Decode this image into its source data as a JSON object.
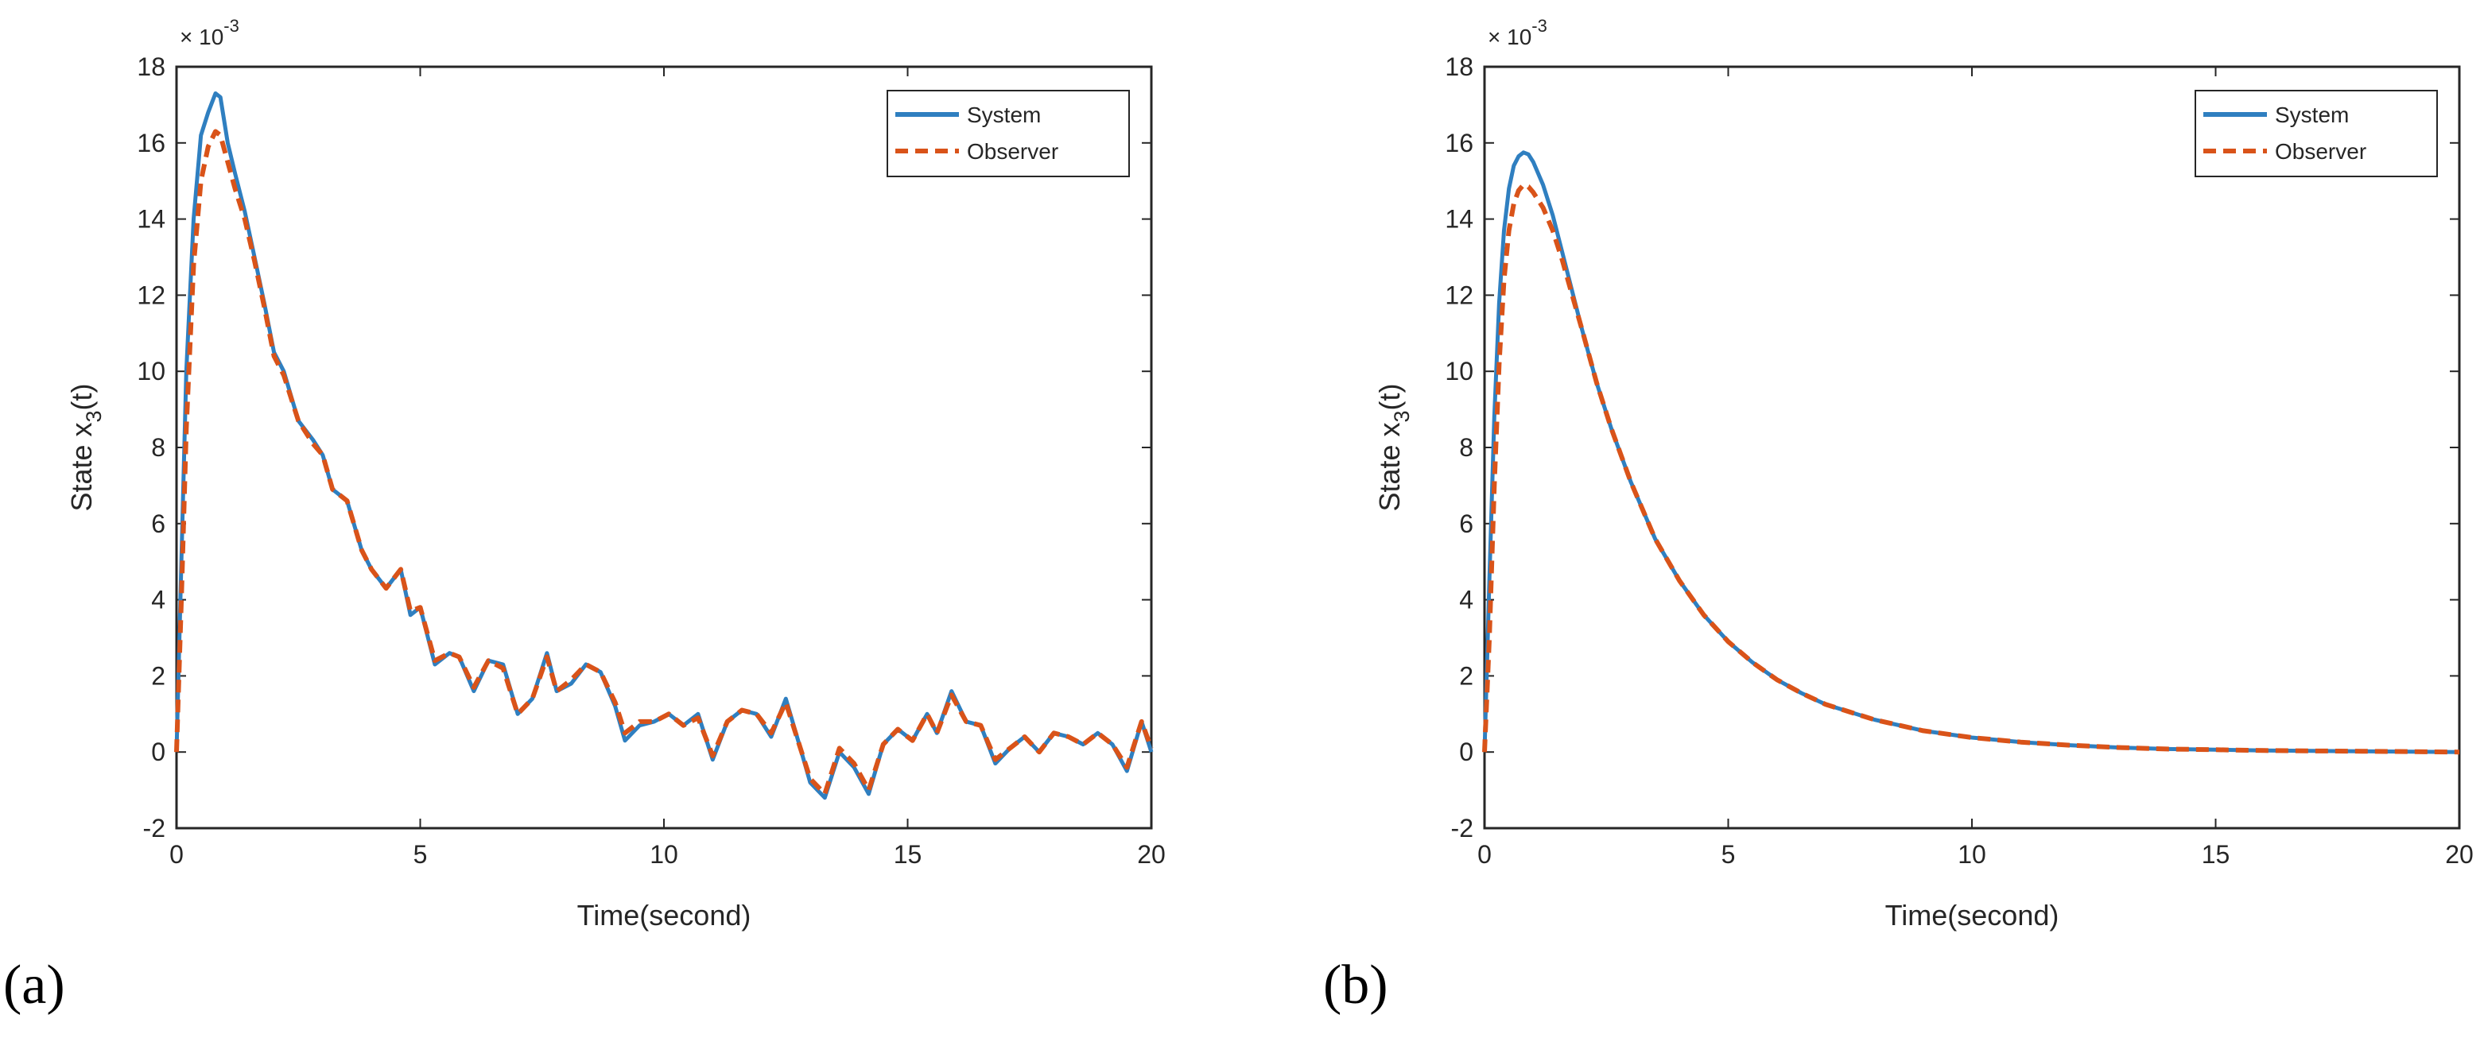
{
  "panels": [
    {
      "label": "(a)"
    },
    {
      "label": "(b)"
    }
  ],
  "colors": {
    "system": "#2f7fc0",
    "observer": "#d95319",
    "axis": "#262626",
    "legend_border": "#262626"
  },
  "chart_data": [
    {
      "type": "line",
      "panel": "(a)",
      "xlabel": "Time(second)",
      "ylabel_main": "State x",
      "ylabel_sub": "3",
      "ylabel_tail": "(t)",
      "exponent_base": "× 10",
      "exponent_power": "-3",
      "xlim": [
        0,
        20
      ],
      "ylim": [
        -2,
        18
      ],
      "xticks": [
        0,
        5,
        10,
        15,
        20
      ],
      "yticks": [
        -2,
        0,
        2,
        4,
        6,
        8,
        10,
        12,
        14,
        16,
        18
      ],
      "legend": [
        "System",
        "Observer"
      ],
      "legend_position": "top-right",
      "grid": false,
      "series": [
        {
          "name": "System",
          "style": "solid",
          "x": [
            0,
            0.1,
            0.2,
            0.35,
            0.5,
            0.65,
            0.8,
            0.9,
            1.05,
            1.2,
            1.4,
            1.6,
            1.8,
            2.0,
            2.2,
            2.5,
            2.8,
            3.0,
            3.2,
            3.5,
            3.8,
            4.0,
            4.3,
            4.6,
            4.8,
            5.0,
            5.3,
            5.6,
            5.8,
            6.1,
            6.4,
            6.7,
            7.0,
            7.3,
            7.6,
            7.8,
            8.1,
            8.4,
            8.7,
            9.0,
            9.2,
            9.5,
            9.8,
            10.1,
            10.4,
            10.7,
            11.0,
            11.3,
            11.6,
            11.9,
            12.2,
            12.5,
            12.8,
            13.0,
            13.3,
            13.6,
            13.9,
            14.2,
            14.5,
            14.8,
            15.1,
            15.4,
            15.6,
            15.9,
            16.2,
            16.5,
            16.8,
            17.1,
            17.4,
            17.7,
            18.0,
            18.3,
            18.6,
            18.9,
            19.2,
            19.5,
            19.8,
            20.0
          ],
          "y": [
            0.0,
            5.0,
            10.0,
            14.0,
            16.2,
            16.8,
            17.3,
            17.2,
            16.0,
            15.2,
            14.2,
            13.0,
            11.8,
            10.5,
            10.0,
            8.7,
            8.2,
            7.8,
            6.9,
            6.6,
            5.3,
            4.8,
            4.3,
            4.8,
            3.6,
            3.8,
            2.3,
            2.6,
            2.5,
            1.6,
            2.4,
            2.3,
            1.0,
            1.4,
            2.6,
            1.6,
            1.8,
            2.3,
            2.1,
            1.2,
            0.3,
            0.7,
            0.8,
            1.0,
            0.7,
            1.0,
            -0.2,
            0.8,
            1.1,
            1.0,
            0.4,
            1.4,
            0.1,
            -0.8,
            -1.2,
            0.0,
            -0.4,
            -1.1,
            0.2,
            0.6,
            0.3,
            1.0,
            0.5,
            1.6,
            0.8,
            0.7,
            -0.3,
            0.1,
            0.4,
            0.0,
            0.5,
            0.4,
            0.2,
            0.5,
            0.2,
            -0.5,
            0.8,
            0.0
          ]
        },
        {
          "name": "Observer",
          "style": "dashed",
          "x": [
            0,
            0.1,
            0.2,
            0.35,
            0.5,
            0.65,
            0.8,
            0.9,
            1.05,
            1.2,
            1.4,
            1.6,
            1.8,
            2.0,
            2.2,
            2.5,
            2.8,
            3.0,
            3.2,
            3.5,
            3.8,
            4.0,
            4.3,
            4.6,
            4.8,
            5.0,
            5.3,
            5.6,
            5.8,
            6.1,
            6.4,
            6.7,
            7.0,
            7.3,
            7.6,
            7.8,
            8.1,
            8.4,
            8.7,
            9.0,
            9.2,
            9.5,
            9.8,
            10.1,
            10.4,
            10.7,
            11.0,
            11.3,
            11.6,
            11.9,
            12.2,
            12.5,
            12.8,
            13.0,
            13.3,
            13.6,
            13.9,
            14.2,
            14.5,
            14.8,
            15.1,
            15.4,
            15.6,
            15.9,
            16.2,
            16.5,
            16.8,
            17.1,
            17.4,
            17.7,
            18.0,
            18.3,
            18.6,
            18.9,
            19.2,
            19.5,
            19.8,
            20.0
          ],
          "y": [
            0.0,
            4.0,
            8.5,
            12.8,
            15.0,
            15.9,
            16.3,
            16.2,
            15.5,
            14.8,
            14.0,
            12.9,
            11.7,
            10.4,
            9.9,
            8.7,
            8.1,
            7.8,
            6.9,
            6.6,
            5.3,
            4.8,
            4.3,
            4.8,
            3.7,
            3.8,
            2.4,
            2.6,
            2.5,
            1.7,
            2.4,
            2.2,
            1.0,
            1.4,
            2.5,
            1.6,
            1.9,
            2.3,
            2.1,
            1.3,
            0.5,
            0.8,
            0.8,
            1.0,
            0.7,
            0.9,
            -0.1,
            0.8,
            1.1,
            1.0,
            0.5,
            1.3,
            0.1,
            -0.7,
            -1.1,
            0.1,
            -0.3,
            -1.0,
            0.2,
            0.6,
            0.3,
            1.0,
            0.5,
            1.5,
            0.8,
            0.7,
            -0.2,
            0.1,
            0.4,
            0.0,
            0.5,
            0.4,
            0.2,
            0.5,
            0.2,
            -0.4,
            0.8,
            0.1
          ]
        }
      ]
    },
    {
      "type": "line",
      "panel": "(b)",
      "xlabel": "Time(second)",
      "ylabel_main": "State x",
      "ylabel_sub": "3",
      "ylabel_tail": "(t)",
      "exponent_base": "× 10",
      "exponent_power": "-3",
      "xlim": [
        0,
        20
      ],
      "ylim": [
        -2,
        18
      ],
      "xticks": [
        0,
        5,
        10,
        15,
        20
      ],
      "yticks": [
        -2,
        0,
        2,
        4,
        6,
        8,
        10,
        12,
        14,
        16,
        18
      ],
      "legend": [
        "System",
        "Observer"
      ],
      "legend_position": "top-right",
      "grid": false,
      "series": [
        {
          "name": "System",
          "style": "solid",
          "x": [
            0,
            0.1,
            0.2,
            0.3,
            0.4,
            0.5,
            0.6,
            0.7,
            0.8,
            0.9,
            1.0,
            1.2,
            1.4,
            1.6,
            1.8,
            2.0,
            2.3,
            2.6,
            3.0,
            3.5,
            4.0,
            4.5,
            5.0,
            5.5,
            6.0,
            6.5,
            7.0,
            8.0,
            9.0,
            10.0,
            11.0,
            12.0,
            13.0,
            14.0,
            15.0,
            16.0,
            17.0,
            18.0,
            19.0,
            20.0
          ],
          "y": [
            0.0,
            4.5,
            8.8,
            11.8,
            13.7,
            14.8,
            15.4,
            15.65,
            15.75,
            15.7,
            15.5,
            14.9,
            14.1,
            13.1,
            12.1,
            11.1,
            9.7,
            8.5,
            7.1,
            5.6,
            4.5,
            3.6,
            2.9,
            2.35,
            1.9,
            1.55,
            1.25,
            0.85,
            0.56,
            0.38,
            0.26,
            0.18,
            0.12,
            0.08,
            0.06,
            0.04,
            0.03,
            0.02,
            0.01,
            0.0
          ]
        },
        {
          "name": "Observer",
          "style": "dashed",
          "x": [
            0,
            0.1,
            0.2,
            0.3,
            0.4,
            0.5,
            0.6,
            0.7,
            0.8,
            0.9,
            1.0,
            1.2,
            1.4,
            1.6,
            1.8,
            2.0,
            2.3,
            2.6,
            3.0,
            3.5,
            4.0,
            4.5,
            5.0,
            5.5,
            6.0,
            6.5,
            7.0,
            8.0,
            9.0,
            10.0,
            11.0,
            12.0,
            13.0,
            14.0,
            15.0,
            16.0,
            17.0,
            18.0,
            19.0,
            20.0
          ],
          "y": [
            0.0,
            3.0,
            7.0,
            10.2,
            12.4,
            13.7,
            14.4,
            14.75,
            14.9,
            14.85,
            14.7,
            14.3,
            13.7,
            12.9,
            12.0,
            11.1,
            9.7,
            8.5,
            7.1,
            5.6,
            4.5,
            3.6,
            2.9,
            2.35,
            1.9,
            1.55,
            1.25,
            0.85,
            0.56,
            0.38,
            0.26,
            0.18,
            0.12,
            0.08,
            0.06,
            0.04,
            0.03,
            0.02,
            0.01,
            0.0
          ]
        }
      ]
    }
  ]
}
